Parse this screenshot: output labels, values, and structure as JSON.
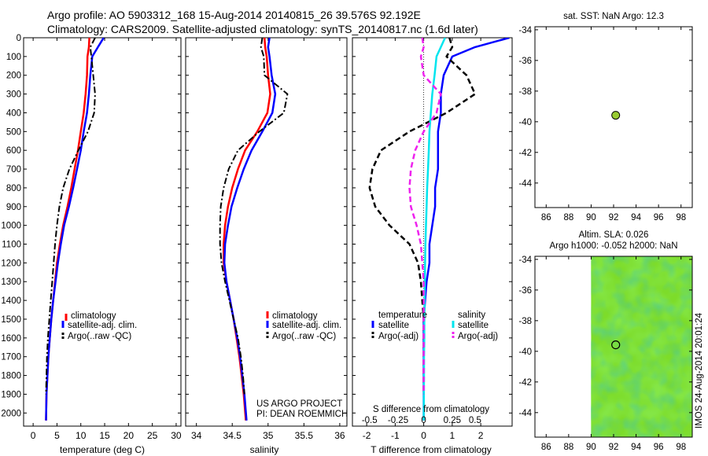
{
  "figure": {
    "title_line1": "Argo profile: AO 5903312_168 15-Aug-2014 20140815_26 39.576S 92.192E",
    "title_line2": "Climatology: CARS2009. Satellite-adjusted climatology: synTS_20140817.nc (1.6d later)",
    "project_line1": "US ARGO PROJECT",
    "project_line2": "PI: DEAN ROEMMICH",
    "side_stamp": "IMOS 24-Aug-2014 20:01:24"
  },
  "colors": {
    "climatology": "#ff0000",
    "satellite": "#0000ff",
    "argo": "#000000",
    "s_satellite": "#00e5ee",
    "s_argo": "#ee22ee",
    "marker": "#99cc33"
  },
  "chart_data": [
    {
      "type": "line",
      "xlabel": "temperature (deg C)",
      "xlim": [
        -2,
        31
      ],
      "xticks": [
        0,
        5,
        10,
        15,
        20,
        25,
        30
      ],
      "ylim": [
        2070,
        0
      ],
      "yticks": [
        0,
        100,
        200,
        300,
        400,
        500,
        600,
        700,
        800,
        900,
        1000,
        1100,
        1200,
        1300,
        1400,
        1500,
        1600,
        1700,
        1800,
        1900,
        2000
      ],
      "legend": [
        "climatology",
        "satellite-adj. clim.",
        "Argo(..raw -QC)"
      ],
      "series": [
        {
          "name": "climatology",
          "x": [
            11.8,
            11.7,
            11.4,
            11.3,
            11.0,
            10.6,
            10.0,
            9.4,
            8.7,
            8.0,
            7.2,
            6.3,
            5.6,
            5.0,
            4.6,
            4.2,
            3.8,
            3.5,
            3.2,
            3.0,
            2.8,
            2.7
          ],
          "y": [
            0,
            50,
            100,
            200,
            300,
            400,
            500,
            600,
            700,
            800,
            900,
            1000,
            1100,
            1200,
            1300,
            1400,
            1500,
            1600,
            1700,
            1800,
            1900,
            2040
          ]
        },
        {
          "name": "satellite-adj. clim.",
          "x": [
            14.8,
            13.6,
            12.4,
            12.0,
            11.7,
            11.3,
            10.6,
            10.0,
            9.2,
            8.4,
            7.5,
            6.5,
            5.8,
            5.2,
            4.7,
            4.2,
            3.8,
            3.5,
            3.2,
            3.0,
            2.8,
            2.7
          ],
          "y": [
            0,
            50,
            100,
            200,
            300,
            400,
            500,
            600,
            700,
            800,
            900,
            1000,
            1100,
            1200,
            1300,
            1400,
            1500,
            1600,
            1700,
            1800,
            1900,
            2040
          ]
        },
        {
          "name": "Argo(..raw -QC)",
          "x": [
            13.0,
            12.0,
            12.2,
            12.6,
            13.0,
            12.8,
            11.5,
            9.5,
            7.6,
            6.3,
            5.5,
            5.0,
            4.6,
            4.3,
            4.0,
            3.7,
            3.4,
            3.1,
            2.9,
            2.8,
            2.7
          ],
          "y": [
            0,
            50,
            100,
            200,
            300,
            400,
            500,
            600,
            700,
            800,
            900,
            1000,
            1100,
            1200,
            1300,
            1400,
            1500,
            1600,
            1700,
            1800,
            1900
          ]
        }
      ]
    },
    {
      "type": "line",
      "xlabel": "salinity",
      "xlim": [
        33.85,
        36.1
      ],
      "xticks": [
        34,
        34.5,
        35,
        35.5,
        36
      ],
      "xtick_labels": [
        "34",
        "34.5",
        "35",
        "35.5",
        "36"
      ],
      "ylim": [
        2070,
        0
      ],
      "legend": [
        "climatology",
        "satellite-adj. clim.",
        "Argo(..raw -QC)"
      ],
      "series": [
        {
          "name": "climatology",
          "x": [
            34.95,
            34.96,
            34.98,
            35.0,
            35.03,
            34.99,
            34.85,
            34.68,
            34.58,
            34.5,
            34.44,
            34.4,
            34.38,
            34.38,
            34.42,
            34.47,
            34.52,
            34.56,
            34.6,
            34.63,
            34.66,
            34.69
          ],
          "y": [
            0,
            50,
            100,
            200,
            300,
            400,
            500,
            600,
            700,
            800,
            900,
            1000,
            1100,
            1200,
            1300,
            1400,
            1500,
            1600,
            1700,
            1800,
            1900,
            2040
          ]
        },
        {
          "name": "satellite-adj. clim.",
          "x": [
            35.02,
            35.0,
            35.02,
            35.05,
            35.1,
            35.06,
            34.92,
            34.77,
            34.66,
            34.57,
            34.49,
            34.44,
            34.4,
            34.39,
            34.42,
            34.47,
            34.52,
            34.57,
            34.61,
            34.64,
            34.67,
            34.7
          ],
          "y": [
            0,
            50,
            100,
            200,
            300,
            400,
            500,
            600,
            700,
            800,
            900,
            1000,
            1100,
            1200,
            1300,
            1400,
            1500,
            1600,
            1700,
            1800,
            1900,
            2040
          ]
        },
        {
          "name": "Argo(..raw -QC)",
          "x": [
            34.92,
            34.9,
            34.94,
            34.95,
            35.27,
            35.22,
            34.88,
            34.58,
            34.45,
            34.38,
            34.34,
            34.33,
            34.33,
            34.35,
            34.4,
            34.46,
            34.52,
            34.58,
            34.62,
            34.65,
            34.67
          ],
          "y": [
            0,
            50,
            100,
            200,
            300,
            400,
            500,
            600,
            700,
            800,
            900,
            1000,
            1100,
            1200,
            1300,
            1400,
            1500,
            1600,
            1700,
            1800,
            1900
          ]
        }
      ]
    },
    {
      "type": "line",
      "xlabel": "T difference from climatology",
      "xlabel_top": "S difference from climatology",
      "xlim": [
        -2.5,
        3.1
      ],
      "xticks": [
        -2,
        -1,
        0,
        1,
        2
      ],
      "top_ticks": [
        {
          "label": "-0.5",
          "t": -1.9
        },
        {
          "label": "-0.25",
          "t": -0.9
        },
        {
          "label": "0",
          "t": 0
        },
        {
          "label": "0.25",
          "t": 1.0
        },
        {
          "label": "0.5",
          "t": 1.8
        }
      ],
      "ylim": [
        2070,
        0
      ],
      "legend_left_title": "temperature",
      "legend_right_title": "salinity",
      "legend": [
        "satellite",
        "Argo(-adj)",
        "satellite",
        "Argo(-adj)"
      ],
      "series": [
        {
          "name": "T satellite",
          "x": [
            3.0,
            1.8,
            1.0,
            0.7,
            0.6,
            0.6,
            0.5,
            0.5,
            0.5,
            0.4,
            0.4,
            0.3,
            0.2,
            0.2,
            0.1,
            0.05,
            0.0,
            0.0,
            0.0,
            0.0,
            0.0
          ],
          "y": [
            0,
            50,
            100,
            200,
            300,
            400,
            500,
            600,
            700,
            800,
            900,
            1000,
            1100,
            1200,
            1300,
            1400,
            1500,
            1600,
            1700,
            1800,
            2040
          ]
        },
        {
          "name": "T Argo(-adj)",
          "x": [
            0.9,
            1.0,
            0.8,
            1.5,
            1.8,
            0.8,
            -0.5,
            -1.5,
            -1.8,
            -1.9,
            -1.7,
            -1.2,
            -0.5,
            -0.2,
            -0.1,
            -0.05,
            0.0,
            0.0,
            0.0,
            0.0
          ],
          "y": [
            0,
            50,
            100,
            200,
            300,
            400,
            500,
            600,
            700,
            800,
            900,
            1000,
            1100,
            1200,
            1300,
            1400,
            1500,
            1600,
            1700,
            1900
          ]
        },
        {
          "name": "S satellite",
          "x": [
            0.75,
            0.6,
            0.45,
            0.38,
            0.3,
            0.25,
            0.2,
            0.18,
            0.15,
            0.12,
            0.1,
            0.08,
            0.06,
            0.05,
            0.04,
            0.03,
            0.02,
            0.02,
            0.01,
            0.01,
            0.0
          ],
          "y": [
            0,
            50,
            100,
            200,
            300,
            400,
            500,
            600,
            700,
            800,
            900,
            1000,
            1100,
            1200,
            1300,
            1400,
            1500,
            1600,
            1700,
            1800,
            2040
          ]
        },
        {
          "name": "S Argo(-adj)",
          "x": [
            -0.05,
            0.0,
            -0.1,
            0.0,
            0.6,
            0.45,
            0.0,
            -0.3,
            -0.45,
            -0.5,
            -0.45,
            -0.25,
            -0.1,
            -0.05,
            0.0,
            0.0,
            0.0,
            0.0,
            0.0,
            0.0
          ],
          "y": [
            0,
            50,
            100,
            200,
            300,
            400,
            500,
            600,
            700,
            800,
            900,
            1000,
            1100,
            1200,
            1300,
            1400,
            1500,
            1600,
            1700,
            1900
          ]
        }
      ]
    },
    {
      "type": "scatter",
      "title": "sat. SST: NaN Argo: 12.3",
      "xlim": [
        85,
        99
      ],
      "ylim": [
        -45.6,
        -33.8
      ],
      "xticks": [
        86,
        88,
        90,
        92,
        94,
        96,
        98
      ],
      "yticks": [
        -34,
        -36,
        -38,
        -40,
        -42,
        -44
      ],
      "point": {
        "x": 92.192,
        "y": -39.576
      }
    },
    {
      "type": "heatmap",
      "title_line1": "Altim. SLA: 0.026",
      "title_line2": "Argo h1000: -0.052 h2000: NaN",
      "xlim": [
        85,
        99
      ],
      "ylim": [
        -45.6,
        -33.8
      ],
      "xticks": [
        86,
        88,
        90,
        92,
        94,
        96,
        98
      ],
      "yticks": [
        -34,
        -36,
        -38,
        -40,
        -42,
        -44
      ],
      "data_xlim": [
        90,
        99
      ],
      "point": {
        "x": 92.192,
        "y": -39.576
      }
    }
  ]
}
